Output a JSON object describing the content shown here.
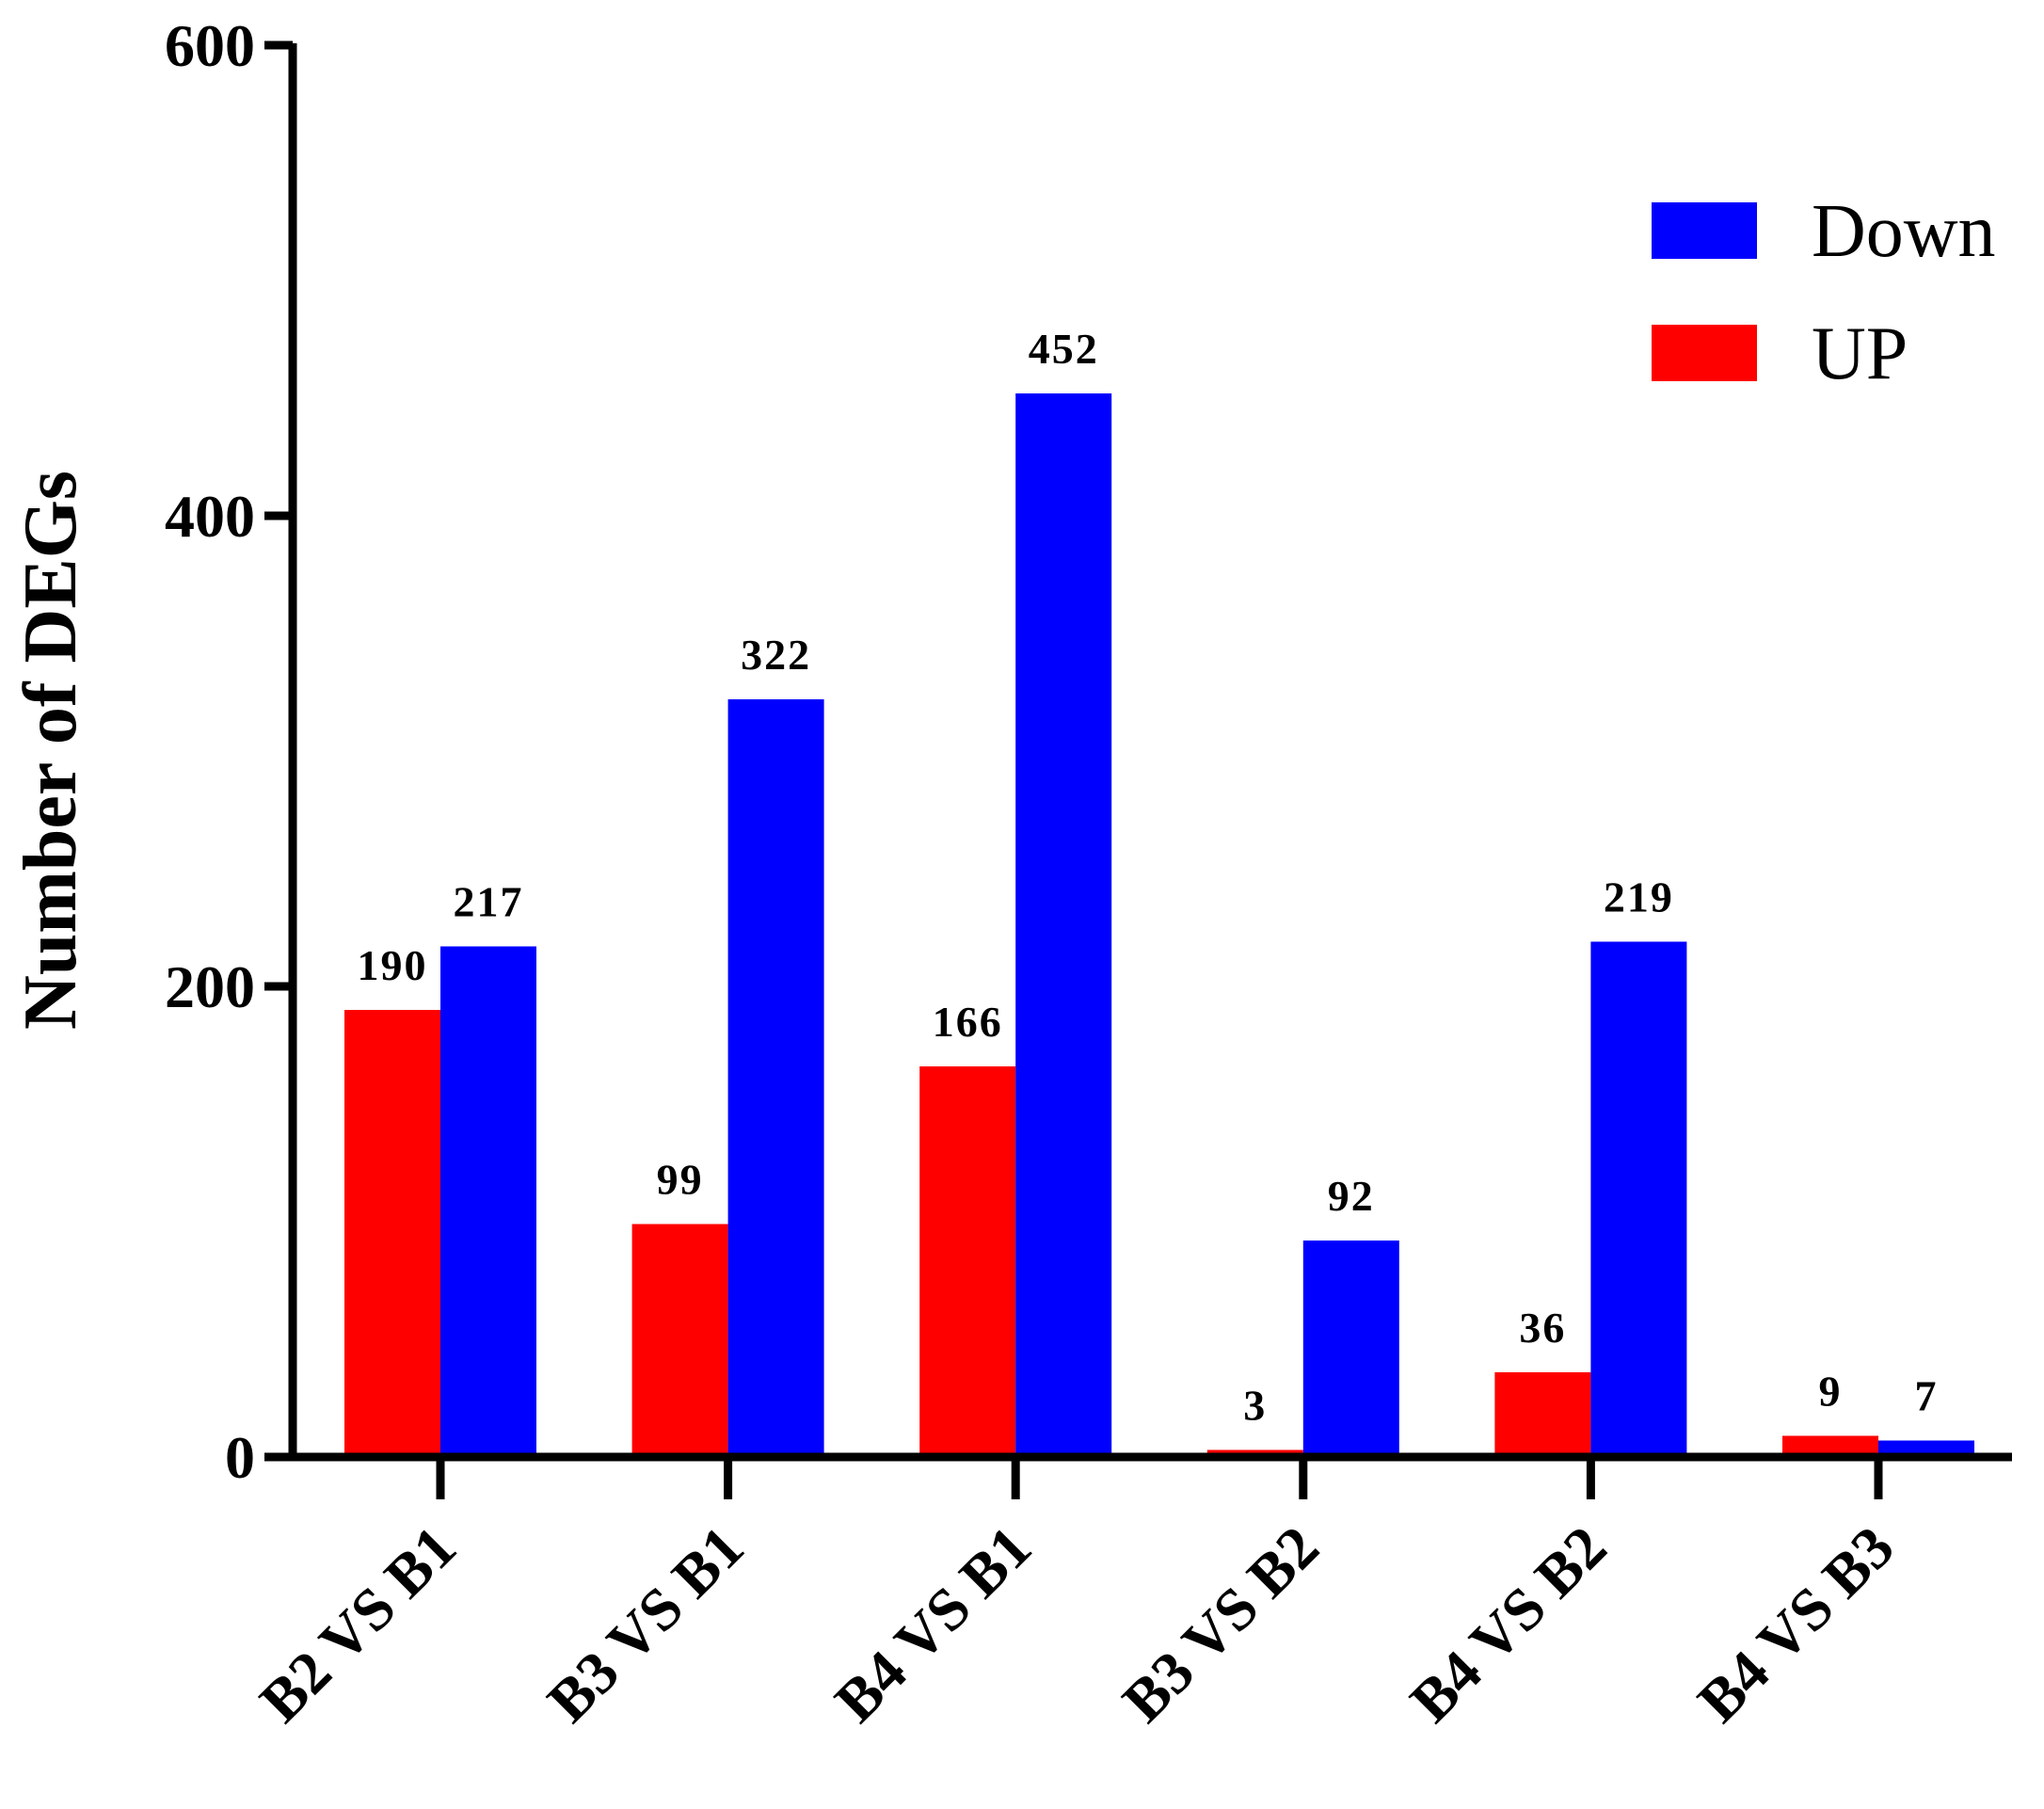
{
  "chart_data": {
    "type": "bar",
    "title": "",
    "xlabel": "",
    "ylabel": "Number of DEGs",
    "ylim": [
      0,
      600
    ],
    "yticks": [
      0,
      200,
      400,
      600
    ],
    "categories": [
      "B2 VS B1",
      "B3 VS B1",
      "B4 VS B1",
      "B3 VS B2",
      "B4 VS B2",
      "B4 VS B3"
    ],
    "series": [
      {
        "name": "UP",
        "color": "#ff0000",
        "values": [
          190,
          99,
          166,
          3,
          36,
          9
        ]
      },
      {
        "name": "Down",
        "color": "#0000ff",
        "values": [
          217,
          322,
          452,
          92,
          219,
          7
        ]
      }
    ],
    "legend": {
      "placement": "top-right",
      "order": [
        "Down",
        "UP"
      ]
    },
    "grid": false
  }
}
